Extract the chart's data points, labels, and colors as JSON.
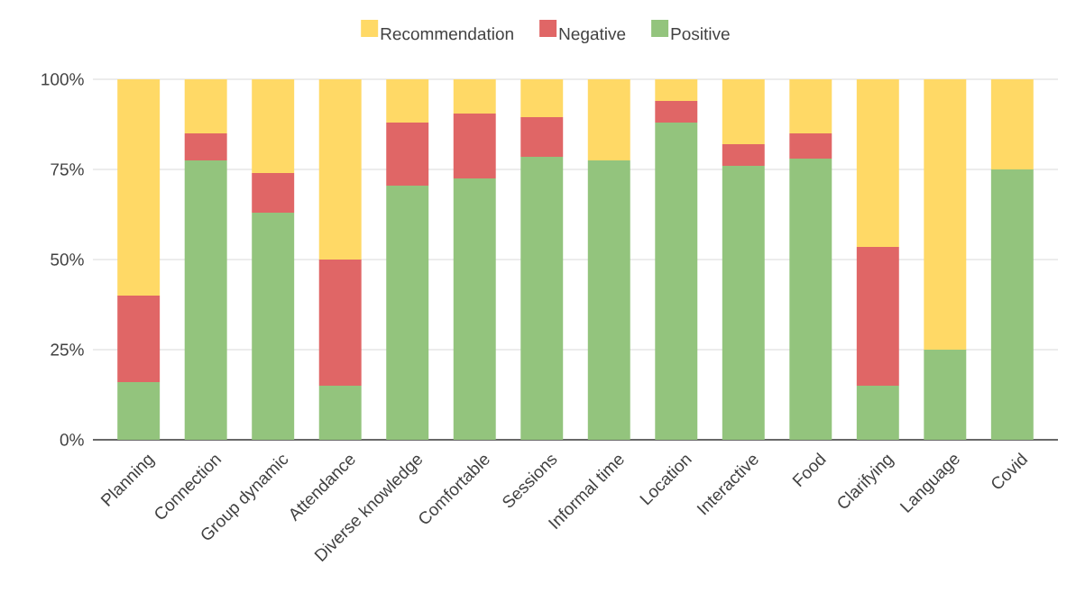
{
  "chart_data": {
    "type": "bar",
    "stacked": true,
    "categories": [
      "Planning",
      "Connection",
      "Group dynamic",
      "Attendance",
      "Diverse knowledge",
      "Comfortable",
      "Sessions",
      "Informal time",
      "Location",
      "Interactive",
      "Food",
      "Clarifying",
      "Language",
      "Covid"
    ],
    "series": [
      {
        "name": "Positive",
        "color": "#93c47d",
        "values": [
          16,
          77.5,
          63,
          15,
          70.5,
          72.5,
          78.5,
          77.5,
          88,
          76,
          78,
          15,
          25,
          75
        ]
      },
      {
        "name": "Negative",
        "color": "#e06666",
        "values": [
          24,
          7.5,
          11,
          35,
          17.5,
          18,
          11,
          0,
          6,
          6,
          7,
          38.5,
          0,
          0
        ]
      },
      {
        "name": "Recommendation",
        "color": "#ffd966",
        "values": [
          60,
          15,
          26,
          50,
          12,
          9.5,
          10.5,
          22.5,
          6,
          18,
          15,
          46.5,
          75,
          25
        ]
      }
    ],
    "ylim": [
      0,
      100
    ],
    "yticks": [
      {
        "value": 0,
        "label": "0%"
      },
      {
        "value": 25,
        "label": "25%"
      },
      {
        "value": 50,
        "label": "50%"
      },
      {
        "value": 75,
        "label": "75%"
      },
      {
        "value": 100,
        "label": "100%"
      }
    ],
    "grid": "y",
    "legend": "top"
  }
}
